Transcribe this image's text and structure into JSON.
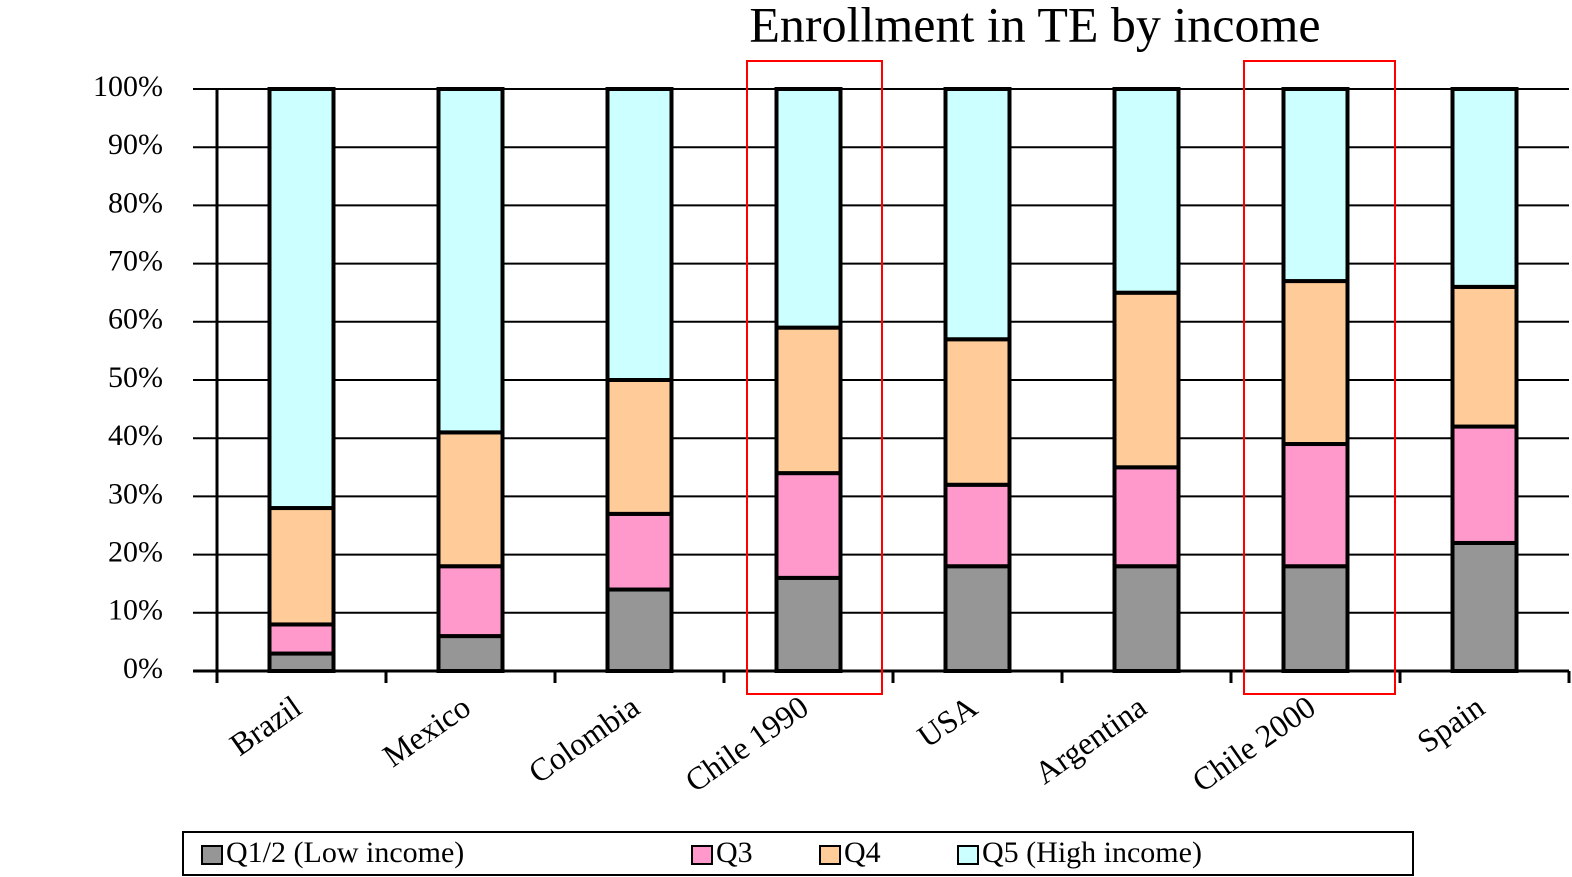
{
  "chart_data": {
    "type": "stacked_bar",
    "title": "Enrollment in TE by income",
    "categories": [
      "Brazil",
      "Mexico",
      "Colombia",
      "Chile 1990",
      "USA",
      "Argentina",
      "Chile 2000",
      "Spain"
    ],
    "series": [
      {
        "name": "Q1/2 (Low income)",
        "color": "#969696",
        "values": [
          3,
          6,
          14,
          16,
          18,
          18,
          18,
          22
        ]
      },
      {
        "name": "Q3",
        "color": "#ff99cc",
        "values": [
          5,
          12,
          13,
          18,
          14,
          17,
          21,
          20
        ]
      },
      {
        "name": "Q4",
        "color": "#ffcc99",
        "values": [
          20,
          23,
          23,
          25,
          25,
          30,
          28,
          24
        ]
      },
      {
        "name": "Q5 (High income)",
        "color": "#ccffff",
        "values": [
          72,
          59,
          50,
          41,
          43,
          35,
          33,
          34
        ]
      }
    ],
    "ylim": [
      0,
      100
    ],
    "yticks": [
      {
        "value": 0,
        "label": "0%"
      },
      {
        "value": 10,
        "label": "10%"
      },
      {
        "value": 20,
        "label": "20%"
      },
      {
        "value": 30,
        "label": "30%"
      },
      {
        "value": 40,
        "label": "40%"
      },
      {
        "value": 50,
        "label": "50%"
      },
      {
        "value": 60,
        "label": "60%"
      },
      {
        "value": 70,
        "label": "70%"
      },
      {
        "value": 80,
        "label": "80%"
      },
      {
        "value": 90,
        "label": "90%"
      },
      {
        "value": 100,
        "label": "100%"
      }
    ],
    "grid": true,
    "legend": "bottom"
  }
}
